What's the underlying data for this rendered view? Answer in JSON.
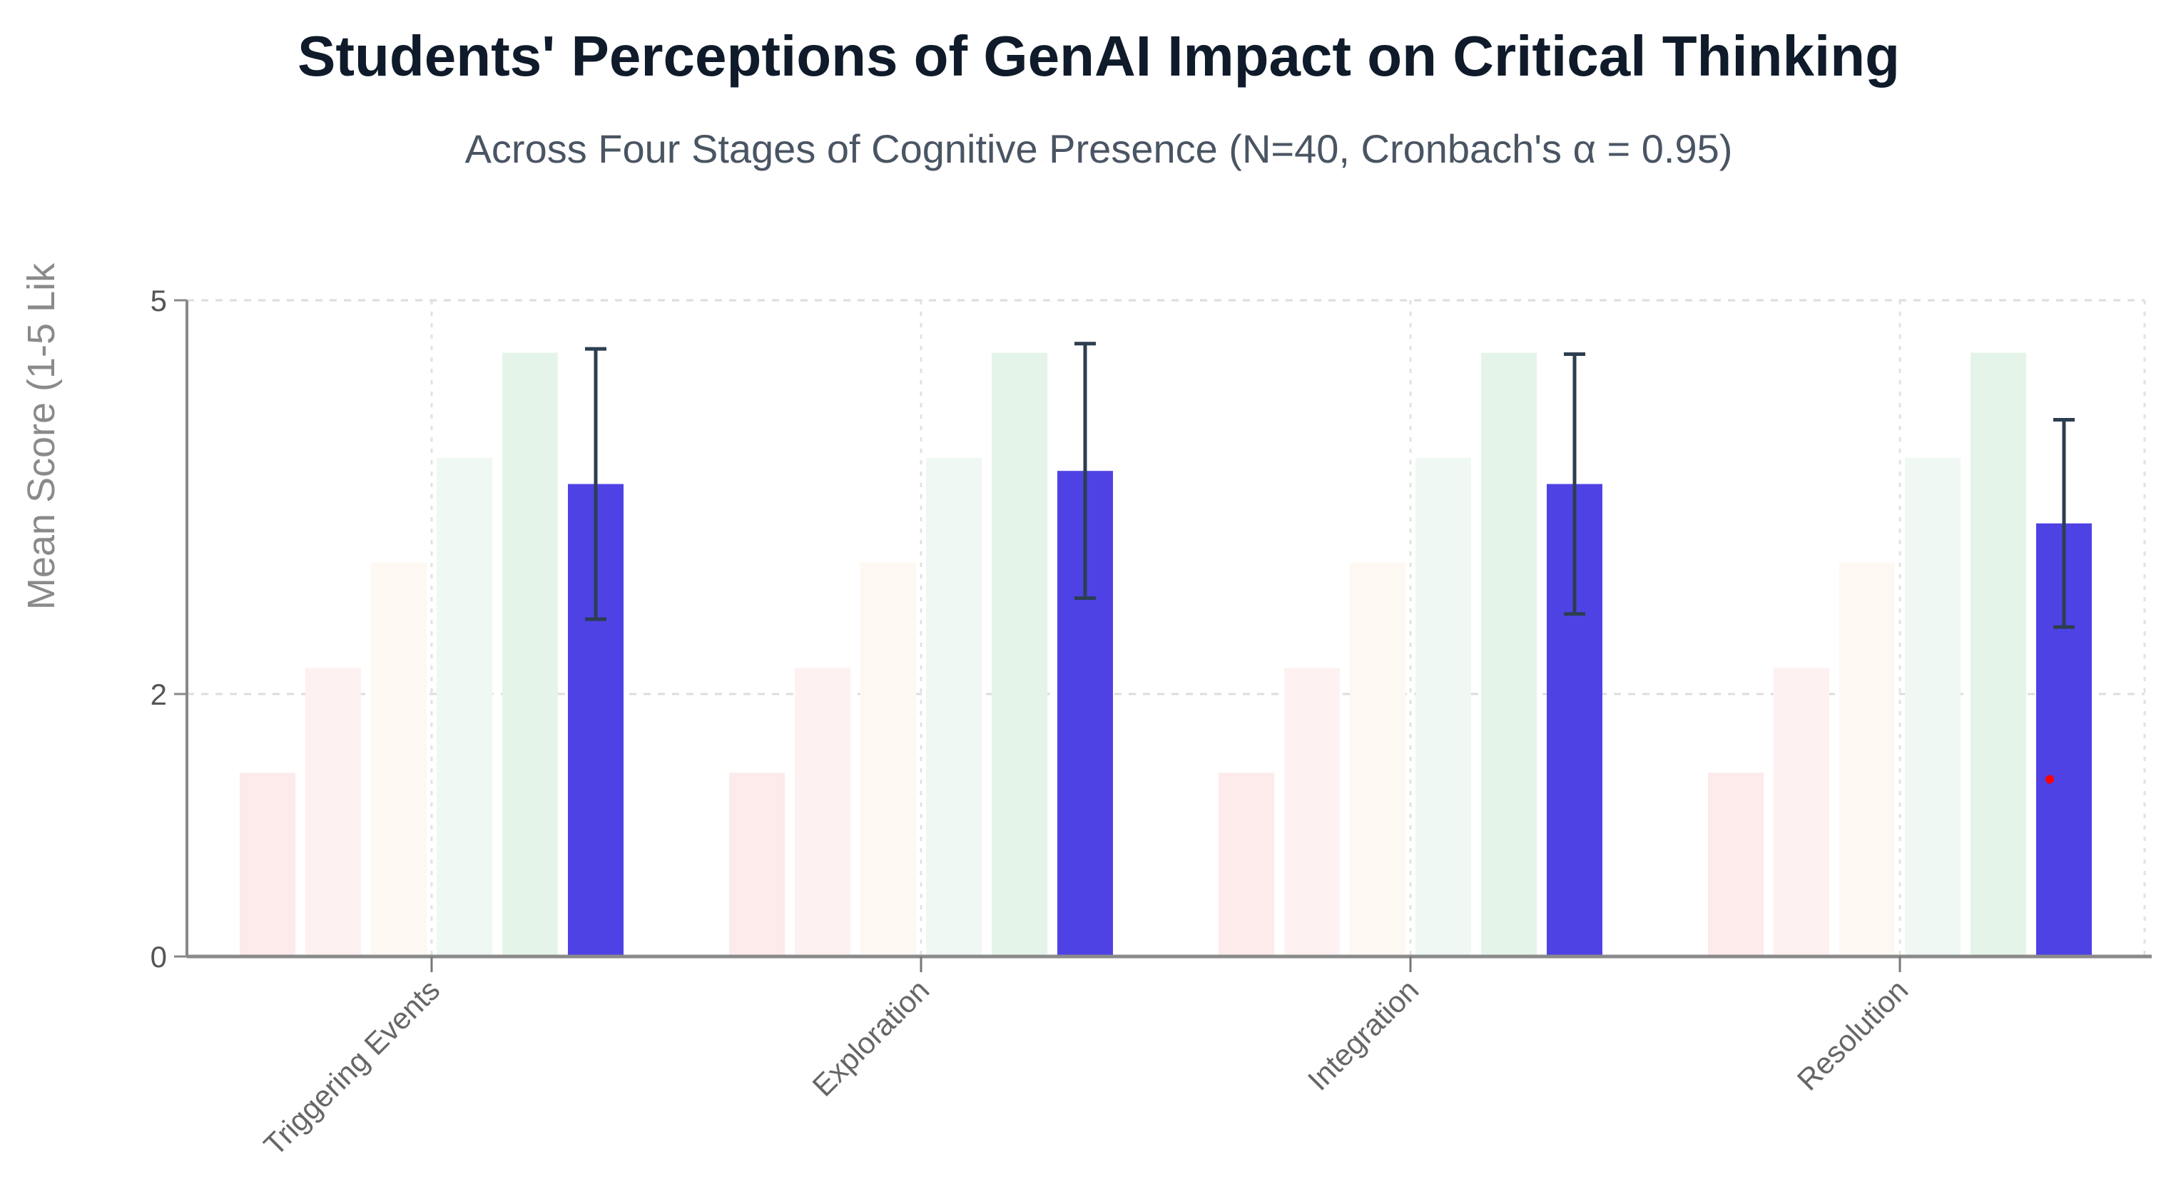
{
  "chart_data": {
    "type": "bar",
    "title": "Students' Perceptions of GenAI Impact on Critical Thinking",
    "subtitle": "Across Four Stages of Cognitive Presence (N=40, Cronbach's α = 0.95)",
    "xlabel": "",
    "ylabel": "Mean Score (1-5 Lik",
    "ylim": [
      0,
      5
    ],
    "yticks": [
      0,
      2,
      5
    ],
    "ytick_labels": [
      "0",
      "2",
      "5"
    ],
    "grid": true,
    "legend": "none",
    "categories": [
      "Triggering Events",
      "Exploration",
      "Integration",
      "Resolution"
    ],
    "reference_series": [
      {
        "values": [
          1.4,
          1.4,
          1.4,
          1.4
        ],
        "color": "#fdeaea"
      },
      {
        "values": [
          2.2,
          2.2,
          2.2,
          2.2
        ],
        "color": "#fef1f1"
      },
      {
        "values": [
          3.0,
          3.0,
          3.0,
          3.0
        ],
        "color": "#fef8f2"
      },
      {
        "values": [
          3.8,
          3.8,
          3.8,
          3.8
        ],
        "color": "#eff8f2"
      },
      {
        "values": [
          4.6,
          4.6,
          4.6,
          4.6
        ],
        "color": "#e5f4e9"
      }
    ],
    "series": [
      {
        "values": [
          3.6,
          3.7,
          3.6,
          3.3
        ],
        "error": [
          1.03,
          0.97,
          0.99,
          0.79
        ],
        "color": "#4f42e5",
        "error_color": "#2c3e50"
      }
    ],
    "marker": {
      "category": "Resolution",
      "y": 1.35,
      "color": "#ff0000"
    }
  }
}
